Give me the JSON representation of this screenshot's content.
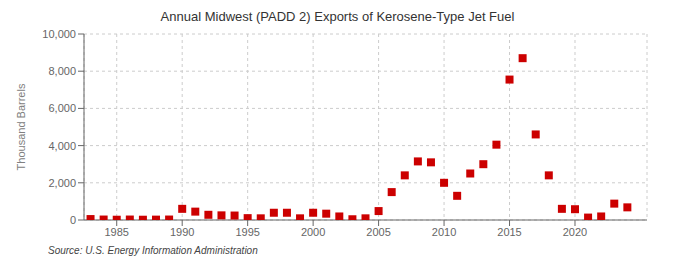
{
  "chart_data": {
    "type": "scatter",
    "title": "Annual Midwest (PADD 2) Exports of Kerosene-Type Jet Fuel",
    "y_label": "Thousand Barrels",
    "annotations": [
      "Source: U.S. Energy Information Administration"
    ],
    "x": [
      1983,
      1984,
      1985,
      1986,
      1987,
      1988,
      1989,
      1990,
      1991,
      1992,
      1993,
      1994,
      1995,
      1996,
      1997,
      1998,
      1999,
      2000,
      2001,
      2002,
      2003,
      2004,
      2005,
      2006,
      2007,
      2008,
      2009,
      2010,
      2011,
      2012,
      2013,
      2014,
      2015,
      2016,
      2017,
      2018,
      2019,
      2020,
      2021,
      2022,
      2023,
      2024
    ],
    "values": [
      50,
      25,
      15,
      25,
      15,
      20,
      25,
      600,
      450,
      280,
      250,
      240,
      100,
      90,
      390,
      390,
      90,
      390,
      340,
      190,
      40,
      90,
      480,
      1500,
      2400,
      3150,
      3100,
      2000,
      1300,
      2500,
      3000,
      4050,
      7550,
      8700,
      4600,
      2400,
      600,
      580,
      130,
      190,
      880,
      680
    ],
    "color": "#cc0000",
    "marker": "square",
    "xlim": [
      1982.5,
      2025.5
    ],
    "xticks": [
      1985,
      1990,
      1995,
      2000,
      2005,
      2010,
      2015,
      2020
    ],
    "ylim": [
      0,
      10000
    ],
    "yticks": [
      0,
      {
        "value": 2000,
        "label": "2,000"
      },
      {
        "value": 4000,
        "label": "4,000"
      },
      {
        "value": 6000,
        "label": "6,000"
      },
      {
        "value": 8000,
        "label": "8,000"
      },
      {
        "value": 10000,
        "label": "10,000"
      }
    ],
    "grid": true
  }
}
